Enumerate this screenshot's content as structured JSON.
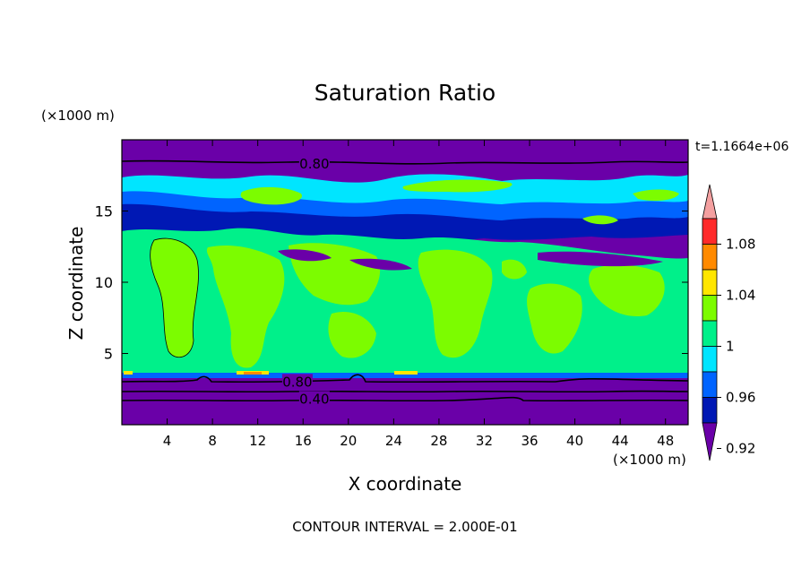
{
  "chart_data": {
    "type": "heatmap",
    "title": "Saturation Ratio",
    "xlabel": "X coordinate",
    "ylabel": "Z coordinate",
    "x_unit": "(×1000 m)",
    "y_unit": "(×1000 m)",
    "xlim": [
      0,
      50
    ],
    "ylim": [
      0,
      20
    ],
    "x_ticks": [
      4,
      8,
      12,
      16,
      20,
      24,
      28,
      32,
      36,
      40,
      44,
      48
    ],
    "y_ticks": [
      5,
      10,
      15
    ],
    "time_label": "t=1.1664e+06",
    "footer": "CONTOUR INTERVAL = 2.000E-01",
    "contour_labels": [
      {
        "text": "0.80",
        "x": 17,
        "z": 18.3
      },
      {
        "text": "0.80",
        "x": 15.5,
        "z": 3.0
      },
      {
        "text": "0.40",
        "x": 17,
        "z": 1.8
      }
    ],
    "colorbar": {
      "labels": [
        "1.08",
        "1.04",
        "1",
        "0.96",
        "0.92"
      ],
      "colors": [
        "#f4a0a0",
        "#ff2a2a",
        "#ff8a00",
        "#ffe600",
        "#7cfc00",
        "#00f08a",
        "#00e5ff",
        "#0064ff",
        "#0018b4",
        "#6a00a8"
      ]
    },
    "fields": {
      "background": "#6a00a8",
      "band_high_upper": {
        "z": [
          14.0,
          17.6
        ],
        "value_range": [
          0.92,
          0.98
        ]
      },
      "band_low": {
        "z": [
          3.2,
          3.5
        ],
        "value_range": [
          0.96,
          1.0
        ]
      },
      "mid_layer": {
        "z": [
          3.5,
          13.8
        ],
        "value_range": [
          0.98,
          1.02
        ]
      }
    }
  }
}
